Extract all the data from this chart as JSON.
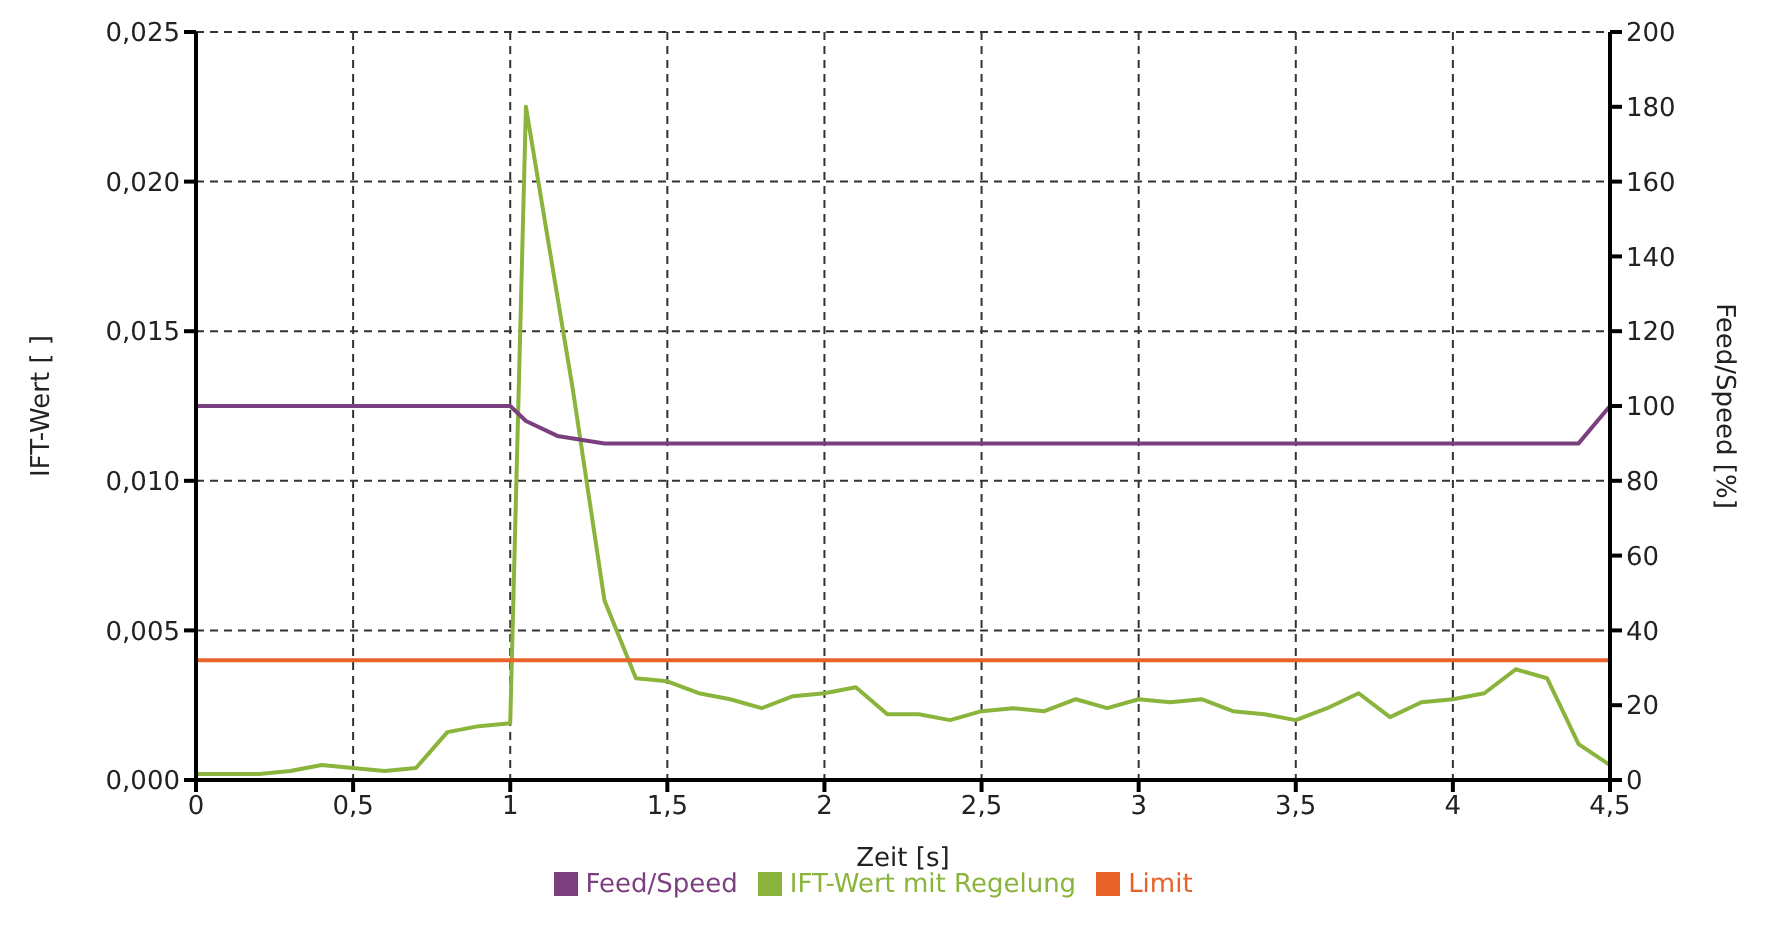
{
  "chart_data": {
    "type": "line",
    "xlabel": "Zeit [s]",
    "ylabel": "IFT-Wert [ ]",
    "y2label": "Feed/Speed [%]",
    "xlim": [
      0,
      4.5
    ],
    "xticks": [
      0,
      {
        "value": 0.5,
        "label": "0,5"
      },
      1,
      {
        "value": 1.5,
        "label": "1,5"
      },
      2,
      {
        "value": 2.5,
        "label": "2,5"
      },
      3,
      {
        "value": 3.5,
        "label": "3,5"
      },
      4,
      {
        "value": 4.5,
        "label": "4,5"
      }
    ],
    "ylim": [
      0,
      0.025
    ],
    "yticks": [
      {
        "value": 0,
        "label": "0,000"
      },
      {
        "value": 0.005,
        "label": "0,005"
      },
      {
        "value": 0.01,
        "label": "0,010"
      },
      {
        "value": 0.015,
        "label": "0,015"
      },
      {
        "value": 0.02,
        "label": "0,020"
      },
      {
        "value": 0.025,
        "label": "0,025"
      }
    ],
    "y2lim": [
      0,
      200
    ],
    "y2ticks": [
      0,
      20,
      40,
      60,
      80,
      100,
      120,
      140,
      160,
      180,
      200
    ],
    "grid": true,
    "legend": "bottom",
    "marker": "none",
    "line_style": "solid",
    "series": [
      {
        "name": "IFT-Wert mit Regelung",
        "color": "#8ab43c",
        "x": [
          0,
          0.1,
          0.2,
          0.3,
          0.4,
          0.5,
          0.6,
          0.7,
          0.8,
          0.9,
          1.0,
          1.05,
          1.2,
          1.3,
          1.4,
          1.5,
          1.6,
          1.7,
          1.8,
          1.9,
          2.0,
          2.1,
          2.2,
          2.3,
          2.4,
          2.5,
          2.6,
          2.7,
          2.8,
          2.9,
          3.0,
          3.1,
          3.2,
          3.3,
          3.4,
          3.5,
          3.6,
          3.7,
          3.8,
          3.9,
          4.0,
          4.1,
          4.2,
          4.3,
          4.4,
          4.5
        ],
        "values": [
          0.0002,
          0.0002,
          0.0002,
          0.0003,
          0.0005,
          0.0004,
          0.0003,
          0.0004,
          0.0016,
          0.0018,
          0.0019,
          0.0225,
          0.013,
          0.006,
          0.0034,
          0.0033,
          0.0029,
          0.0027,
          0.0024,
          0.0028,
          0.0029,
          0.0031,
          0.0022,
          0.0022,
          0.002,
          0.0023,
          0.0024,
          0.0023,
          0.0027,
          0.0024,
          0.0027,
          0.0026,
          0.0027,
          0.0023,
          0.0022,
          0.002,
          0.0024,
          0.0029,
          0.0021,
          0.0026,
          0.0027,
          0.0029,
          0.0037,
          0.0034,
          0.0012,
          0.0005
        ]
      },
      {
        "name": "Limit",
        "color": "#e8622a",
        "x": [
          0,
          4.5
        ],
        "values": [
          0.004,
          0.004
        ]
      },
      {
        "name": "Feed/Speed",
        "color": "#7b3f7f",
        "axis": "y2",
        "x": [
          0,
          1.0,
          1.05,
          1.15,
          1.3,
          4.4,
          4.5
        ],
        "values": [
          100,
          100,
          96,
          92,
          90,
          90,
          100
        ]
      }
    ]
  }
}
